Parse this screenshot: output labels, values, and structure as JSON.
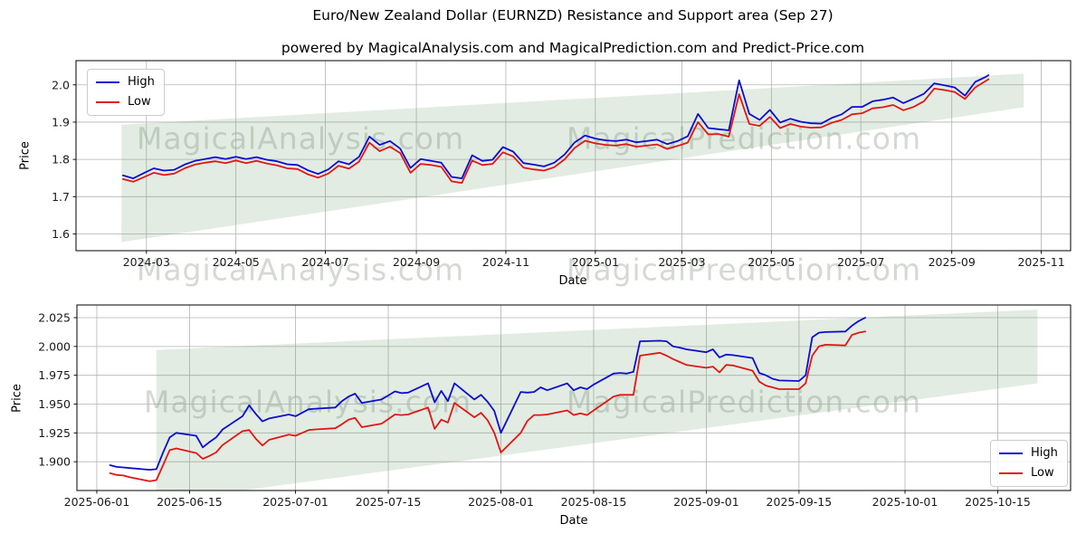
{
  "header": {
    "title": "Euro/New Zealand Dollar (EURNZD) Resistance and Support area (Sep 27)",
    "subtitle": "powered by MagicalAnalysis.com and MagicalPrediction.com and Predict-Price.com"
  },
  "legend": {
    "high_label": "High",
    "low_label": "Low"
  },
  "watermarks": {
    "left": "MagicalAnalysis.com",
    "right": "MagicalPrediction.com"
  },
  "colors": {
    "high": "#0d0dd0",
    "low": "#e01717",
    "band": "rgba(110,160,110,0.20)",
    "grid": "#b3b3b3",
    "spine": "#000000",
    "tick_text": "#1a1a1a"
  },
  "chart_data": [
    {
      "id": "weekly-overview",
      "type": "line",
      "xlabel": "Date",
      "ylabel": "Price",
      "grid": true,
      "legend_position": "upper-left",
      "xlim": [
        "2024-01-13",
        "2025-11-21"
      ],
      "ylim": [
        1.555,
        2.065
      ],
      "x_ticks": [
        {
          "date": "2024-03-01",
          "label": "2024-03"
        },
        {
          "date": "2024-05-01",
          "label": "2024-05"
        },
        {
          "date": "2024-07-01",
          "label": "2024-07"
        },
        {
          "date": "2024-09-01",
          "label": "2024-09"
        },
        {
          "date": "2024-11-01",
          "label": "2024-11"
        },
        {
          "date": "2025-01-01",
          "label": "2025-01"
        },
        {
          "date": "2025-03-01",
          "label": "2025-03"
        },
        {
          "date": "2025-05-01",
          "label": "2025-05"
        },
        {
          "date": "2025-07-01",
          "label": "2025-07"
        },
        {
          "date": "2025-09-01",
          "label": "2025-09"
        },
        {
          "date": "2025-11-01",
          "label": "2025-11"
        }
      ],
      "y_ticks": [
        {
          "value": 1.6,
          "label": "1.6"
        },
        {
          "value": 1.7,
          "label": "1.7"
        },
        {
          "value": 1.8,
          "label": "1.8"
        },
        {
          "value": 1.9,
          "label": "1.9"
        },
        {
          "value": 2.0,
          "label": "2.0"
        }
      ],
      "band": {
        "name": "resistance-support-area",
        "x": [
          "2024-02-13",
          "2025-10-20"
        ],
        "top": [
          1.893,
          2.03
        ],
        "bottom": [
          1.578,
          1.94
        ]
      },
      "dates": [
        "2024-02-14",
        "2024-02-21",
        "2024-02-28",
        "2024-03-06",
        "2024-03-13",
        "2024-03-20",
        "2024-03-27",
        "2024-04-03",
        "2024-04-10",
        "2024-04-17",
        "2024-04-24",
        "2024-05-01",
        "2024-05-08",
        "2024-05-15",
        "2024-05-22",
        "2024-05-29",
        "2024-06-05",
        "2024-06-12",
        "2024-06-19",
        "2024-06-26",
        "2024-07-03",
        "2024-07-10",
        "2024-07-17",
        "2024-07-24",
        "2024-07-31",
        "2024-08-07",
        "2024-08-14",
        "2024-08-21",
        "2024-08-28",
        "2024-09-04",
        "2024-09-11",
        "2024-09-18",
        "2024-09-25",
        "2024-10-02",
        "2024-10-09",
        "2024-10-16",
        "2024-10-23",
        "2024-10-30",
        "2024-11-06",
        "2024-11-13",
        "2024-11-20",
        "2024-11-27",
        "2024-12-04",
        "2024-12-11",
        "2024-12-18",
        "2024-12-25",
        "2025-01-01",
        "2025-01-08",
        "2025-01-15",
        "2025-01-22",
        "2025-01-29",
        "2025-02-05",
        "2025-02-12",
        "2025-02-19",
        "2025-02-26",
        "2025-03-05",
        "2025-03-12",
        "2025-03-19",
        "2025-03-26",
        "2025-04-02",
        "2025-04-09",
        "2025-04-16",
        "2025-04-23",
        "2025-04-30",
        "2025-05-07",
        "2025-05-14",
        "2025-05-21",
        "2025-05-28",
        "2025-06-04",
        "2025-06-11",
        "2025-06-18",
        "2025-06-25",
        "2025-07-02",
        "2025-07-09",
        "2025-07-16",
        "2025-07-23",
        "2025-07-30",
        "2025-08-06",
        "2025-08-13",
        "2025-08-20",
        "2025-08-27",
        "2025-09-03",
        "2025-09-10",
        "2025-09-17",
        "2025-09-24",
        "2025-09-26"
      ],
      "series": [
        {
          "name": "High",
          "color_key": "high",
          "values": [
            1.757,
            1.749,
            1.763,
            1.776,
            1.77,
            1.772,
            1.786,
            1.796,
            1.801,
            1.806,
            1.801,
            1.807,
            1.801,
            1.806,
            1.799,
            1.795,
            1.787,
            1.785,
            1.771,
            1.761,
            1.773,
            1.795,
            1.787,
            1.807,
            1.861,
            1.839,
            1.849,
            1.829,
            1.777,
            1.801,
            1.796,
            1.791,
            1.753,
            1.749,
            1.811,
            1.796,
            1.799,
            1.833,
            1.821,
            1.79,
            1.786,
            1.781,
            1.791,
            1.813,
            1.846,
            1.864,
            1.856,
            1.851,
            1.849,
            1.853,
            1.846,
            1.849,
            1.853,
            1.841,
            1.849,
            1.862,
            1.922,
            1.884,
            1.881,
            1.878,
            2.012,
            1.922,
            1.906,
            1.933,
            1.899,
            1.909,
            1.901,
            1.897,
            1.896,
            1.911,
            1.921,
            1.941,
            1.941,
            1.956,
            1.96,
            1.966,
            1.951,
            1.963,
            1.976,
            2.004,
            1.999,
            1.993,
            1.971,
            2.008,
            2.021,
            2.026
          ]
        },
        {
          "name": "Low",
          "color_key": "low",
          "values": [
            1.747,
            1.74,
            1.752,
            1.764,
            1.758,
            1.762,
            1.776,
            1.786,
            1.791,
            1.795,
            1.79,
            1.797,
            1.79,
            1.796,
            1.789,
            1.784,
            1.776,
            1.774,
            1.76,
            1.751,
            1.762,
            1.783,
            1.775,
            1.794,
            1.845,
            1.822,
            1.834,
            1.817,
            1.764,
            1.788,
            1.785,
            1.78,
            1.741,
            1.737,
            1.797,
            1.785,
            1.788,
            1.819,
            1.808,
            1.778,
            1.773,
            1.77,
            1.779,
            1.8,
            1.831,
            1.85,
            1.843,
            1.839,
            1.837,
            1.841,
            1.834,
            1.837,
            1.84,
            1.828,
            1.836,
            1.845,
            1.9,
            1.867,
            1.868,
            1.861,
            1.975,
            1.895,
            1.89,
            1.914,
            1.884,
            1.895,
            1.888,
            1.885,
            1.886,
            1.898,
            1.906,
            1.921,
            1.924,
            1.937,
            1.94,
            1.946,
            1.932,
            1.941,
            1.956,
            1.99,
            1.986,
            1.981,
            1.962,
            1.993,
            2.01,
            2.015
          ]
        }
      ]
    },
    {
      "id": "daily-detail",
      "type": "line",
      "xlabel": "Date",
      "ylabel": "Price",
      "grid": true,
      "legend_position": "lower-right",
      "xlim": [
        "2025-05-29",
        "2025-10-26"
      ],
      "ylim": [
        1.875,
        2.036
      ],
      "x_ticks": [
        {
          "date": "2025-06-01",
          "label": "2025-06-01"
        },
        {
          "date": "2025-06-15",
          "label": "2025-06-15"
        },
        {
          "date": "2025-07-01",
          "label": "2025-07-01"
        },
        {
          "date": "2025-07-15",
          "label": "2025-07-15"
        },
        {
          "date": "2025-08-01",
          "label": "2025-08-01"
        },
        {
          "date": "2025-08-15",
          "label": "2025-08-15"
        },
        {
          "date": "2025-09-01",
          "label": "2025-09-01"
        },
        {
          "date": "2025-09-15",
          "label": "2025-09-15"
        },
        {
          "date": "2025-10-01",
          "label": "2025-10-01"
        },
        {
          "date": "2025-10-15",
          "label": "2025-10-15"
        }
      ],
      "y_ticks": [
        {
          "value": 1.9,
          "label": "1.900"
        },
        {
          "value": 1.925,
          "label": "1.925"
        },
        {
          "value": 1.95,
          "label": "1.950"
        },
        {
          "value": 1.975,
          "label": "1.975"
        },
        {
          "value": 2.0,
          "label": "2.000"
        },
        {
          "value": 2.025,
          "label": "2.025"
        }
      ],
      "band": {
        "name": "resistance-support-area",
        "x": [
          "2025-06-10",
          "2025-10-21"
        ],
        "top": [
          1.997,
          2.032
        ],
        "bottom": [
          1.865,
          1.968
        ]
      },
      "dates": [
        "2025-06-03",
        "2025-06-04",
        "2025-06-05",
        "2025-06-06",
        "2025-06-09",
        "2025-06-10",
        "2025-06-11",
        "2025-06-12",
        "2025-06-13",
        "2025-06-16",
        "2025-06-17",
        "2025-06-18",
        "2025-06-19",
        "2025-06-20",
        "2025-06-23",
        "2025-06-24",
        "2025-06-25",
        "2025-06-26",
        "2025-06-27",
        "2025-06-30",
        "2025-07-01",
        "2025-07-02",
        "2025-07-03",
        "2025-07-04",
        "2025-07-07",
        "2025-07-08",
        "2025-07-09",
        "2025-07-10",
        "2025-07-11",
        "2025-07-14",
        "2025-07-15",
        "2025-07-16",
        "2025-07-17",
        "2025-07-18",
        "2025-07-21",
        "2025-07-22",
        "2025-07-23",
        "2025-07-24",
        "2025-07-25",
        "2025-07-28",
        "2025-07-29",
        "2025-07-30",
        "2025-07-31",
        "2025-08-01",
        "2025-08-04",
        "2025-08-05",
        "2025-08-06",
        "2025-08-07",
        "2025-08-08",
        "2025-08-11",
        "2025-08-12",
        "2025-08-13",
        "2025-08-14",
        "2025-08-15",
        "2025-08-18",
        "2025-08-19",
        "2025-08-20",
        "2025-08-21",
        "2025-08-22",
        "2025-08-25",
        "2025-08-26",
        "2025-08-27",
        "2025-08-28",
        "2025-08-29",
        "2025-09-01",
        "2025-09-02",
        "2025-09-03",
        "2025-09-04",
        "2025-09-05",
        "2025-09-08",
        "2025-09-09",
        "2025-09-10",
        "2025-09-11",
        "2025-09-12",
        "2025-09-15",
        "2025-09-16",
        "2025-09-17",
        "2025-09-18",
        "2025-09-19",
        "2025-09-22",
        "2025-09-23",
        "2025-09-24",
        "2025-09-25"
      ],
      "series": [
        {
          "name": "High",
          "color_key": "high",
          "values": [
            1.897,
            1.8955,
            1.895,
            1.8945,
            1.893,
            1.8935,
            1.908,
            1.921,
            1.925,
            1.9225,
            1.9125,
            1.917,
            1.921,
            1.928,
            1.9395,
            1.949,
            1.9415,
            1.935,
            1.9375,
            1.941,
            1.9395,
            1.9425,
            1.9455,
            1.946,
            1.947,
            1.9525,
            1.9565,
            1.959,
            1.951,
            1.954,
            1.9575,
            1.961,
            1.9595,
            1.96,
            1.968,
            1.9515,
            1.9615,
            1.9525,
            1.968,
            1.954,
            1.958,
            1.952,
            1.944,
            1.925,
            1.9605,
            1.96,
            1.9605,
            1.9645,
            1.962,
            1.968,
            1.962,
            1.9645,
            1.963,
            1.967,
            1.9765,
            1.977,
            1.9765,
            1.978,
            2.0045,
            2.005,
            2.0045,
            2.0,
            1.999,
            1.9975,
            1.995,
            1.9975,
            1.9905,
            1.993,
            1.9925,
            1.99,
            1.977,
            1.975,
            1.972,
            1.9705,
            1.97,
            1.975,
            2.008,
            2.012,
            2.0125,
            2.013,
            2.018,
            2.022,
            2.025
          ]
        },
        {
          "name": "Low",
          "color_key": "low",
          "values": [
            1.89,
            1.8885,
            1.888,
            1.8865,
            1.883,
            1.884,
            1.897,
            1.91,
            1.9115,
            1.9075,
            1.9025,
            1.905,
            1.908,
            1.9145,
            1.9265,
            1.9275,
            1.92,
            1.914,
            1.919,
            1.9235,
            1.9225,
            1.925,
            1.9275,
            1.928,
            1.929,
            1.9325,
            1.9365,
            1.938,
            1.93,
            1.933,
            1.937,
            1.941,
            1.9405,
            1.941,
            1.947,
            1.9285,
            1.9365,
            1.934,
            1.951,
            1.9385,
            1.9425,
            1.936,
            1.925,
            1.908,
            1.925,
            1.9355,
            1.9405,
            1.9405,
            1.941,
            1.9445,
            1.9405,
            1.942,
            1.9405,
            1.9445,
            1.9565,
            1.958,
            1.958,
            1.958,
            1.992,
            1.9945,
            1.992,
            1.989,
            1.9865,
            1.984,
            1.9815,
            1.9825,
            1.9775,
            1.984,
            1.9835,
            1.979,
            1.9695,
            1.966,
            1.9645,
            1.963,
            1.963,
            1.968,
            1.992,
            2.0,
            2.0015,
            2.001,
            2.01,
            2.012,
            2.013
          ]
        }
      ]
    }
  ]
}
